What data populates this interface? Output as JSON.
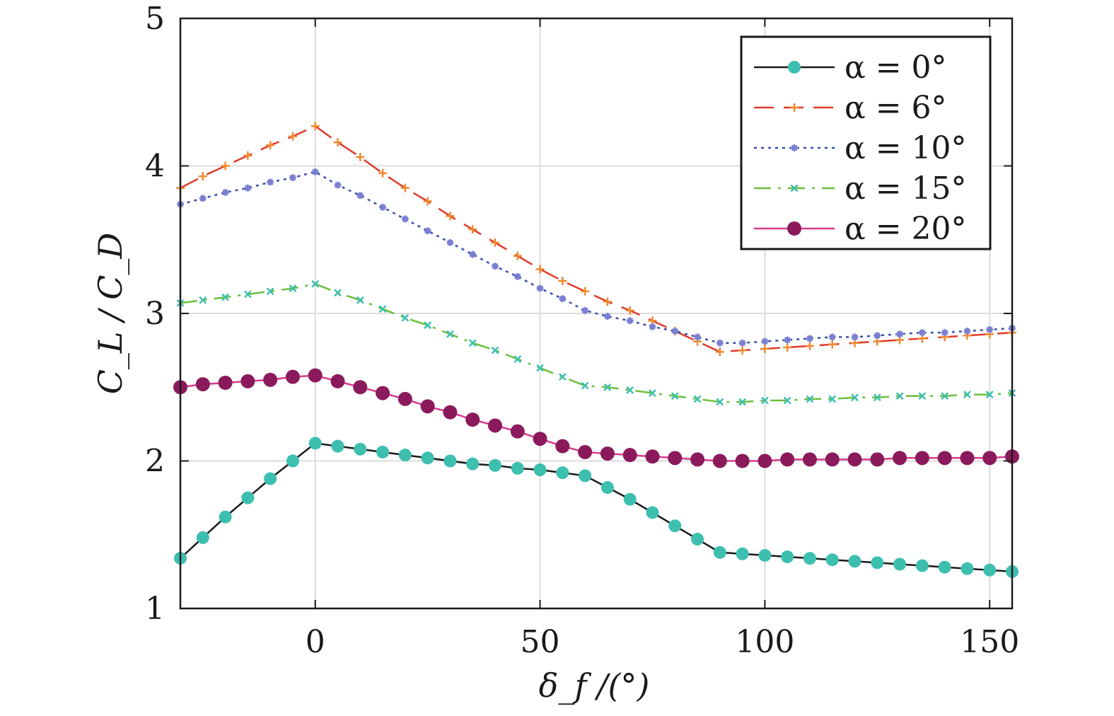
{
  "chart_data": {
    "type": "line",
    "xlabel": "δ_f /(°)",
    "ylabel": "C_L / C_D",
    "xlim": [
      -30,
      155
    ],
    "ylim": [
      1,
      5
    ],
    "xticks": [
      0,
      50,
      100,
      150
    ],
    "yticks": [
      1,
      2,
      3,
      4,
      5
    ],
    "grid": true,
    "legend_position": "top-right",
    "series": [
      {
        "name": "α = 0°",
        "line_color": "#1a1a1a",
        "marker_color": "#3dbfb0",
        "dash": "solid",
        "marker": "circle",
        "x": [
          -30,
          -25,
          -20,
          -15,
          -10,
          -5,
          0,
          5,
          10,
          15,
          20,
          25,
          30,
          35,
          40,
          45,
          50,
          55,
          60,
          65,
          70,
          75,
          80,
          85,
          90,
          95,
          100,
          105,
          110,
          115,
          120,
          125,
          130,
          135,
          140,
          145,
          150,
          155
        ],
        "y": [
          1.34,
          1.48,
          1.62,
          1.75,
          1.88,
          2.0,
          2.12,
          2.1,
          2.08,
          2.06,
          2.04,
          2.02,
          2.0,
          1.98,
          1.97,
          1.95,
          1.94,
          1.92,
          1.9,
          1.82,
          1.74,
          1.65,
          1.56,
          1.47,
          1.38,
          1.37,
          1.36,
          1.35,
          1.34,
          1.33,
          1.32,
          1.31,
          1.3,
          1.29,
          1.28,
          1.27,
          1.26,
          1.25
        ]
      },
      {
        "name": "α = 6°",
        "line_color": "#e03a2a",
        "marker_color": "#f08a30",
        "dash": "dashed",
        "marker": "plus",
        "x": [
          -30,
          -25,
          -20,
          -15,
          -10,
          -5,
          0,
          5,
          10,
          15,
          20,
          25,
          30,
          35,
          40,
          45,
          50,
          55,
          60,
          65,
          70,
          75,
          80,
          85,
          90,
          95,
          100,
          105,
          110,
          115,
          120,
          125,
          130,
          135,
          140,
          145,
          150,
          155
        ],
        "y": [
          3.85,
          3.93,
          4.0,
          4.07,
          4.14,
          4.2,
          4.27,
          4.16,
          4.06,
          3.95,
          3.85,
          3.76,
          3.66,
          3.57,
          3.48,
          3.39,
          3.3,
          3.22,
          3.15,
          3.08,
          3.02,
          2.95,
          2.88,
          2.81,
          2.74,
          2.75,
          2.76,
          2.77,
          2.78,
          2.79,
          2.8,
          2.81,
          2.82,
          2.83,
          2.84,
          2.85,
          2.86,
          2.87
        ]
      },
      {
        "name": "α = 10°",
        "line_color": "#3a4fa8",
        "marker_color": "#7a7ed0",
        "dash": "dotted",
        "marker": "asterisk",
        "x": [
          -30,
          -25,
          -20,
          -15,
          -10,
          -5,
          0,
          5,
          10,
          15,
          20,
          25,
          30,
          35,
          40,
          45,
          50,
          55,
          60,
          65,
          70,
          75,
          80,
          85,
          90,
          95,
          100,
          105,
          110,
          115,
          120,
          125,
          130,
          135,
          140,
          145,
          150,
          155
        ],
        "y": [
          3.74,
          3.78,
          3.82,
          3.85,
          3.89,
          3.92,
          3.96,
          3.87,
          3.8,
          3.72,
          3.64,
          3.56,
          3.48,
          3.4,
          3.32,
          3.25,
          3.17,
          3.1,
          3.02,
          2.98,
          2.95,
          2.91,
          2.88,
          2.84,
          2.8,
          2.8,
          2.81,
          2.82,
          2.83,
          2.84,
          2.84,
          2.85,
          2.86,
          2.87,
          2.87,
          2.88,
          2.89,
          2.9
        ]
      },
      {
        "name": "α = 15°",
        "line_color": "#6cbf3c",
        "marker_color": "#3dbfb0",
        "dash": "dashdot",
        "marker": "cross",
        "x": [
          -30,
          -25,
          -20,
          -15,
          -10,
          -5,
          0,
          5,
          10,
          15,
          20,
          25,
          30,
          35,
          40,
          45,
          50,
          55,
          60,
          65,
          70,
          75,
          80,
          85,
          90,
          95,
          100,
          105,
          110,
          115,
          120,
          125,
          130,
          135,
          140,
          145,
          150,
          155
        ],
        "y": [
          3.07,
          3.09,
          3.11,
          3.13,
          3.15,
          3.17,
          3.2,
          3.14,
          3.09,
          3.03,
          2.97,
          2.92,
          2.86,
          2.8,
          2.75,
          2.69,
          2.63,
          2.57,
          2.51,
          2.5,
          2.48,
          2.46,
          2.44,
          2.42,
          2.4,
          2.4,
          2.41,
          2.41,
          2.42,
          2.42,
          2.43,
          2.43,
          2.44,
          2.44,
          2.44,
          2.45,
          2.45,
          2.46
        ]
      },
      {
        "name": "α = 20°",
        "line_color": "#d83a8c",
        "marker_color": "#8a1a5c",
        "dash": "solid",
        "marker": "bigcircle",
        "x": [
          -30,
          -25,
          -20,
          -15,
          -10,
          -5,
          0,
          5,
          10,
          15,
          20,
          25,
          30,
          35,
          40,
          45,
          50,
          55,
          60,
          65,
          70,
          75,
          80,
          85,
          90,
          95,
          100,
          105,
          110,
          115,
          120,
          125,
          130,
          135,
          140,
          145,
          150,
          155
        ],
        "y": [
          2.5,
          2.52,
          2.53,
          2.54,
          2.55,
          2.57,
          2.58,
          2.54,
          2.5,
          2.46,
          2.42,
          2.37,
          2.33,
          2.28,
          2.24,
          2.2,
          2.15,
          2.1,
          2.06,
          2.05,
          2.04,
          2.03,
          2.02,
          2.01,
          2.0,
          2.0,
          2.0,
          2.01,
          2.01,
          2.01,
          2.01,
          2.01,
          2.02,
          2.02,
          2.02,
          2.02,
          2.02,
          2.03
        ]
      }
    ]
  }
}
